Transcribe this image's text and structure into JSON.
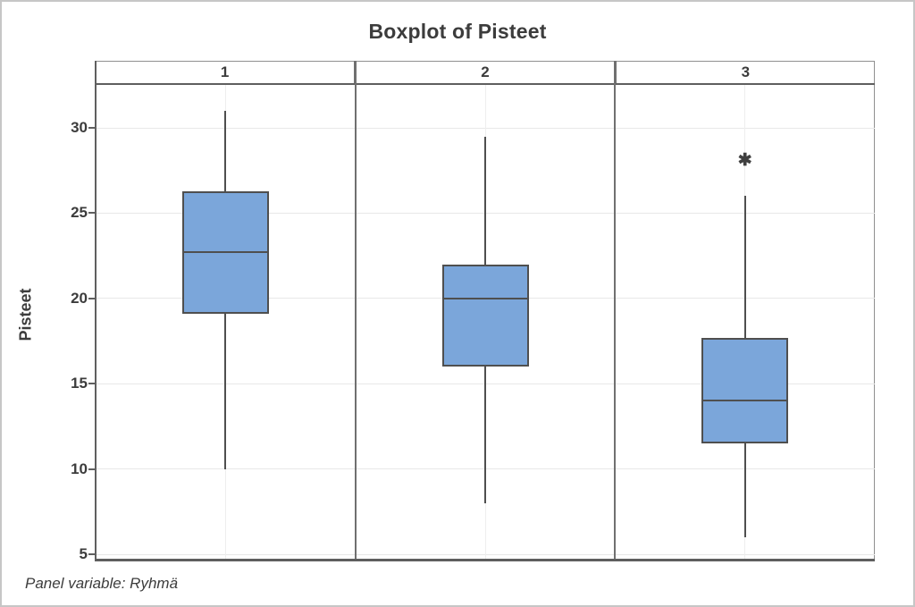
{
  "chart_data": {
    "type": "boxplot",
    "title": "Boxplot of Pisteet",
    "ylabel": "Pisteet",
    "panel_note": "Panel variable: Ryhmä",
    "panel_variable": "Ryhmä",
    "categories": [
      "1",
      "2",
      "3"
    ],
    "yticks": [
      30,
      25,
      20,
      15,
      10,
      5
    ],
    "ylim": [
      4.7,
      32.5
    ],
    "grid": "horizontal-only",
    "legend": "none",
    "panels": [
      {
        "label": "1",
        "whisker_low": 10,
        "q1": 19.1,
        "median": 22.7,
        "q3": 26.3,
        "whisker_high": 31,
        "outliers": []
      },
      {
        "label": "2",
        "whisker_low": 8,
        "q1": 16,
        "median": 20,
        "q3": 22,
        "whisker_high": 29.5,
        "outliers": []
      },
      {
        "label": "3",
        "whisker_low": 6,
        "q1": 11.5,
        "median": 14,
        "q3": 17.7,
        "whisker_high": 26,
        "outliers": [
          28
        ]
      }
    ],
    "outlier_marker": "✱",
    "colors": {
      "box_fill": "#7ba6da",
      "box_stroke": "#4f4f4f",
      "text": "#3c3c3c",
      "gridline": "#e8e8e8",
      "panel_border": "#707070",
      "axis_line": "#5f5f5f"
    }
  }
}
